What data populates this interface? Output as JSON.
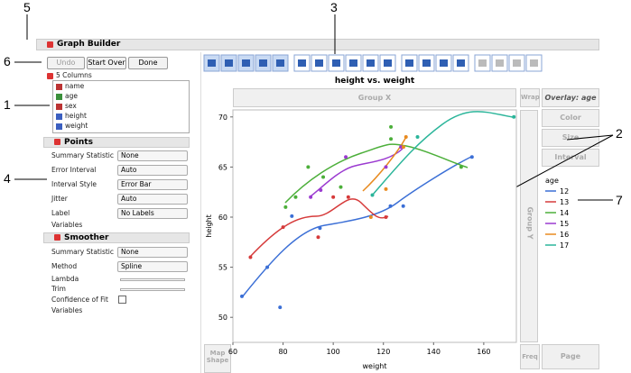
{
  "callouts": [
    "5",
    "3",
    "6",
    "1",
    "4",
    "2",
    "7"
  ],
  "header": {
    "title": "Graph Builder"
  },
  "buttons": [
    "Undo",
    "Start Over",
    "Done"
  ],
  "columns": {
    "title": "5 Columns",
    "items": [
      "name",
      "age",
      "sex",
      "height",
      "weight"
    ]
  },
  "points_panel": {
    "title": "Points",
    "rows": [
      {
        "label": "Summary Statistic",
        "value": "None"
      },
      {
        "label": "Error Interval",
        "value": "Auto"
      },
      {
        "label": "Interval Style",
        "value": "Error Bar"
      },
      {
        "label": "Jitter",
        "value": "Auto"
      },
      {
        "label": "Label",
        "value": "No Labels"
      }
    ],
    "variables": "Variables"
  },
  "smoother_panel": {
    "title": "Smoother",
    "rows": [
      {
        "label": "Summary Statistic",
        "value": "None"
      },
      {
        "label": "Method",
        "value": "Spline"
      }
    ],
    "sliders": [
      "Lambda",
      "Trim"
    ],
    "checkbox": "Confidence of Fit",
    "variables": "Variables"
  },
  "zones": {
    "group_x": "Group X",
    "group_y": "Group Y",
    "wrap": "Wrap",
    "overlay": "Overlay: age",
    "color": "Color",
    "size": "Size",
    "interval": "Interval",
    "map_shape": "Map Shape",
    "freq": "Freq",
    "page": "Page"
  },
  "graph": {
    "type": "scatter",
    "title": "height vs. weight",
    "x_label": "weight",
    "y_label": "height",
    "xlim": [
      60,
      173
    ],
    "ylim": [
      47.5,
      70.7
    ],
    "xticks": [
      60,
      80,
      100,
      120,
      140,
      160
    ],
    "yticks": [
      50,
      55,
      60,
      65,
      70
    ],
    "legend_title": "age",
    "series": [
      {
        "name": "12",
        "color": "#3b6fd6",
        "x": [
          63.6,
          73.7,
          78.8,
          83.5,
          94.7,
          122.8,
          127.9,
          155.3
        ],
        "values": [
          52.1,
          55,
          51,
          60.1,
          58.9,
          61.1,
          61.1,
          66
        ]
      },
      {
        "name": "13",
        "color": "#d63a3a",
        "x": [
          67,
          80,
          94,
          100,
          106,
          121
        ],
        "values": [
          56,
          59,
          58,
          62,
          62,
          60
        ]
      },
      {
        "name": "14",
        "color": "#4caf3a",
        "x": [
          81,
          85,
          90,
          96,
          103,
          123,
          123,
          151
        ],
        "values": [
          61,
          62,
          65,
          64,
          63,
          69,
          67.8,
          65
        ]
      },
      {
        "name": "15",
        "color": "#9b3ad0",
        "x": [
          91,
          95,
          105,
          121,
          127
        ],
        "values": [
          62,
          62.7,
          66,
          65,
          67
        ]
      },
      {
        "name": "16",
        "color": "#e88a1f",
        "x": [
          115,
          121,
          128,
          129
        ],
        "values": [
          60,
          62.8,
          67,
          68
        ]
      },
      {
        "name": "17",
        "color": "#2bb59a",
        "x": [
          115.6,
          133.6,
          172
        ],
        "values": [
          62.2,
          68,
          70
        ]
      }
    ]
  }
}
